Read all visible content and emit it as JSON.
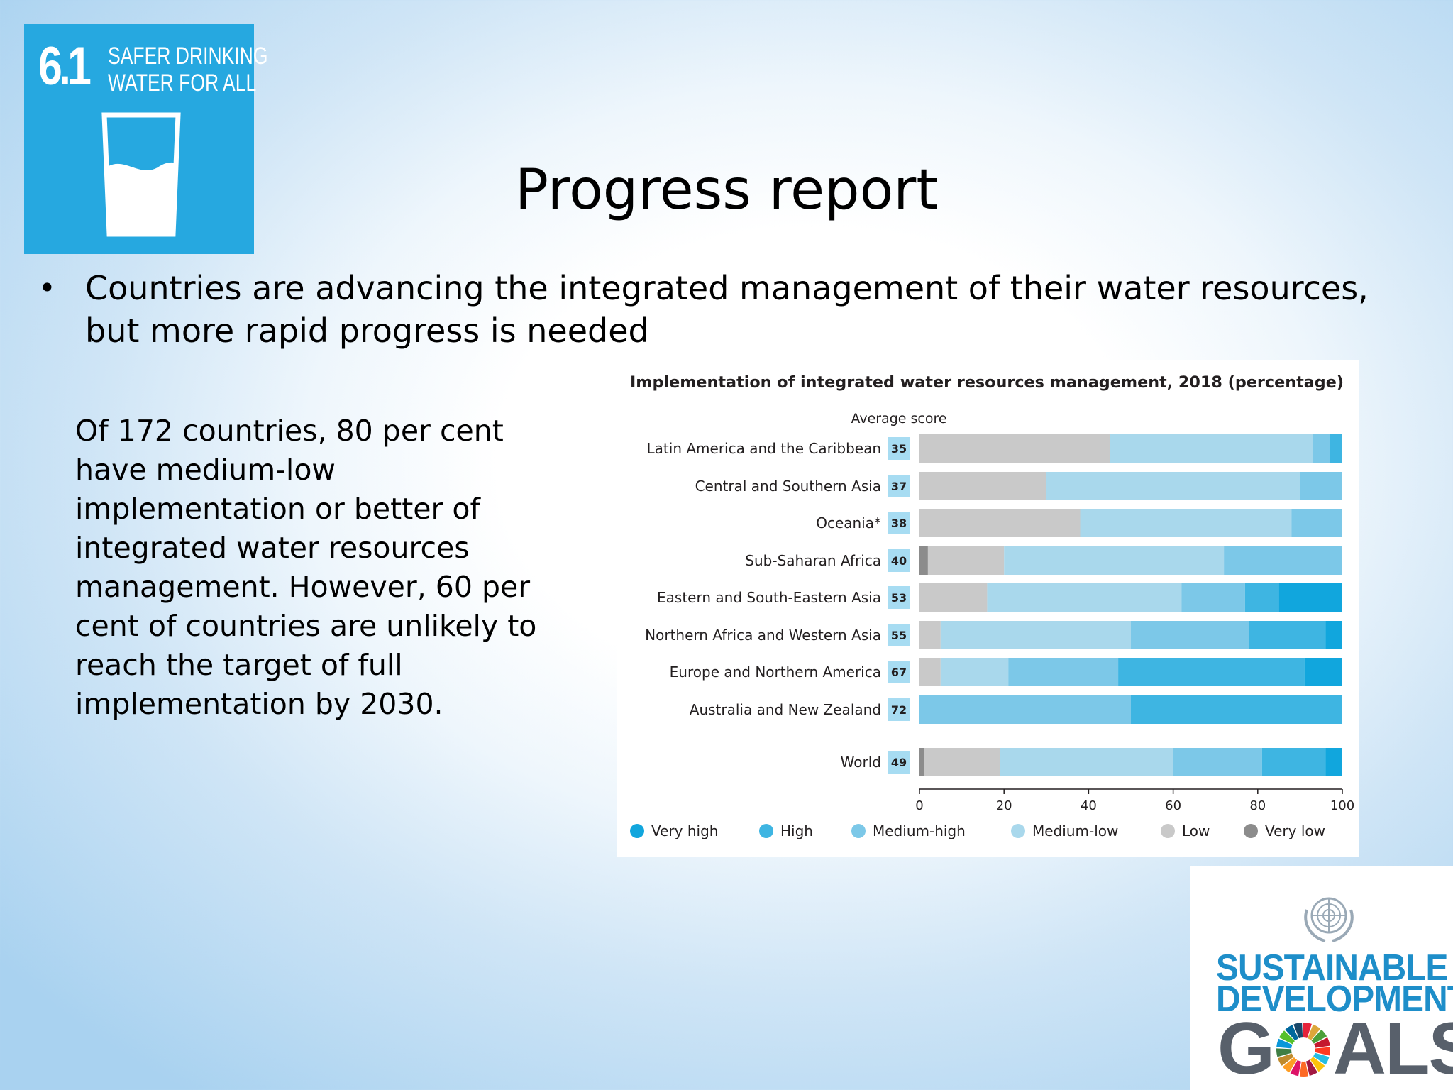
{
  "slide": {
    "title": "Progress report",
    "bullet": "Countries are advancing the integrated management of their water resources, but more rapid progress is needed",
    "paragraph": "Of 172 countries, 80 per cent have medium-low implementation or better of integrated water resources management. However, 60 per cent of countries are unlikely to reach the target of full implementation by 2030."
  },
  "sdg_tile": {
    "number": "6.1",
    "title_line1": "SAFER DRINKING",
    "title_line2": "WATER FOR ALL",
    "icon": "water-glass-icon",
    "color": "#26a8e0"
  },
  "sdg_logo": {
    "line1": "SUSTAINABLE",
    "line2": "DEVELOPMENT",
    "line3_left": "G",
    "line3_right": "ALS",
    "emblem": "un-emblem-icon",
    "wheel": "sdg-color-wheel-icon"
  },
  "chart_data": {
    "type": "bar",
    "orientation": "horizontal",
    "stacked": true,
    "title": "Implementation of integrated water resources management, 2018 (percentage)",
    "score_header": "Average score",
    "categories": [
      "Latin America and the Caribbean",
      "Central and Southern Asia",
      "Oceania*",
      "Sub-Saharan Africa",
      "Eastern and South-Eastern Asia",
      "Northern Africa and Western Asia",
      "Europe and Northern America",
      "Australia and New Zealand",
      "World"
    ],
    "average_scores": [
      35,
      37,
      38,
      40,
      53,
      55,
      67,
      72,
      49
    ],
    "series": [
      {
        "name": "Very low",
        "color": "#8c8c8c",
        "values": [
          0,
          0,
          0,
          2,
          0,
          0,
          0,
          0,
          1
        ]
      },
      {
        "name": "Low",
        "color": "#c9c9c9",
        "values": [
          45,
          30,
          38,
          18,
          16,
          5,
          5,
          0,
          18
        ]
      },
      {
        "name": "Medium-low",
        "color": "#a9d8ec",
        "values": [
          48,
          60,
          50,
          52,
          46,
          45,
          16,
          0,
          41
        ]
      },
      {
        "name": "Medium-high",
        "color": "#7cc8e8",
        "values": [
          4,
          10,
          12,
          28,
          15,
          28,
          26,
          50,
          21
        ]
      },
      {
        "name": "High",
        "color": "#3eb5e2",
        "values": [
          3,
          0,
          0,
          0,
          8,
          18,
          44,
          50,
          15
        ]
      },
      {
        "name": "Very high",
        "color": "#11a6dd",
        "values": [
          0,
          0,
          0,
          0,
          15,
          4,
          9,
          0,
          4
        ]
      }
    ],
    "legend_order": [
      "Very high",
      "High",
      "Medium-high",
      "Medium-low",
      "Low",
      "Very low"
    ],
    "xlim": [
      0,
      100
    ],
    "xticks": [
      0,
      20,
      40,
      60,
      80,
      100
    ],
    "score_box_color": "#a7dcf2",
    "legend_position": "bottom",
    "grid": false
  }
}
